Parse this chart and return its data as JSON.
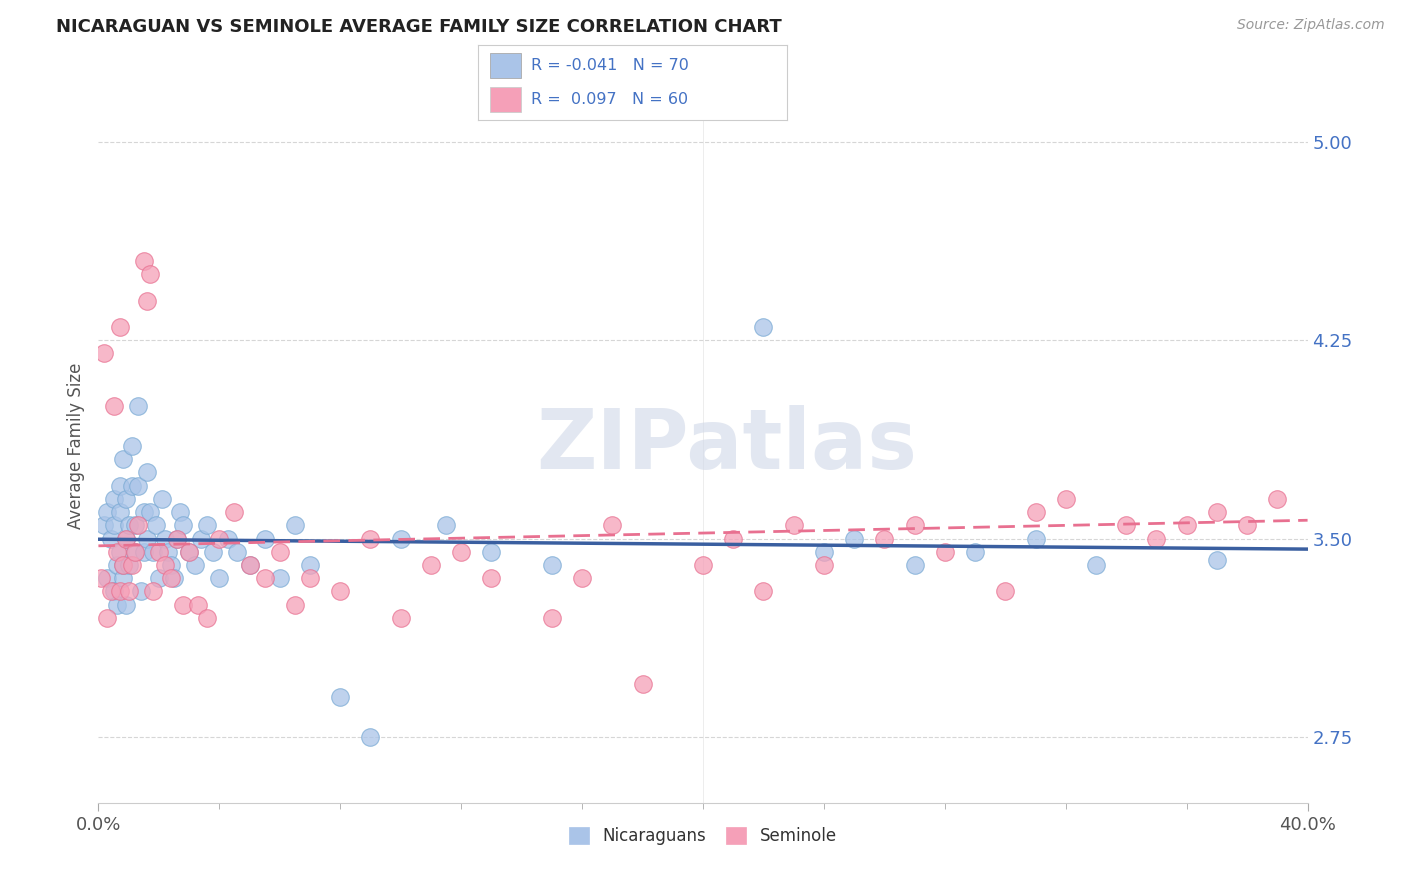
{
  "title": "NICARAGUAN VS SEMINOLE AVERAGE FAMILY SIZE CORRELATION CHART",
  "source": "Source: ZipAtlas.com",
  "ylabel": "Average Family Size",
  "xlim": [
    0.0,
    0.4
  ],
  "ylim": [
    2.5,
    5.2
  ],
  "yticks": [
    2.75,
    3.5,
    4.25,
    5.0
  ],
  "xticks": [
    0.0,
    0.4
  ],
  "xtick_labels": [
    "0.0%",
    "40.0%"
  ],
  "ytick_labels": [
    "2.75",
    "3.50",
    "4.25",
    "5.00"
  ],
  "nicaraguan_color": "#aac4e8",
  "seminole_color": "#f5a0b8",
  "nicaraguan_edge_color": "#7aaad4",
  "seminole_edge_color": "#e87090",
  "nicaraguan_line_color": "#3a5fa0",
  "seminole_line_color": "#e87090",
  "seminole_line_dash": true,
  "nicaraguan_R": -0.041,
  "nicaraguan_N": 70,
  "seminole_R": 0.097,
  "seminole_N": 60,
  "legend_text_color": "#4472c4",
  "watermark": "ZIPatlas",
  "watermark_color": "#d0d8e8",
  "background_color": "#ffffff",
  "grid_color": "#cccccc",
  "title_color": "#222222",
  "source_color": "#999999",
  "ytick_color": "#4472c4",
  "xtick_color": "#555555",
  "ylabel_color": "#555555",
  "nicaraguan_x": [
    0.002,
    0.003,
    0.003,
    0.004,
    0.005,
    0.005,
    0.005,
    0.006,
    0.006,
    0.007,
    0.007,
    0.007,
    0.008,
    0.008,
    0.008,
    0.009,
    0.009,
    0.009,
    0.01,
    0.01,
    0.011,
    0.011,
    0.012,
    0.012,
    0.013,
    0.013,
    0.014,
    0.015,
    0.015,
    0.016,
    0.016,
    0.017,
    0.018,
    0.019,
    0.02,
    0.021,
    0.022,
    0.023,
    0.024,
    0.025,
    0.026,
    0.027,
    0.028,
    0.03,
    0.032,
    0.034,
    0.036,
    0.038,
    0.04,
    0.043,
    0.046,
    0.05,
    0.055,
    0.06,
    0.065,
    0.07,
    0.08,
    0.09,
    0.1,
    0.115,
    0.13,
    0.15,
    0.22,
    0.24,
    0.25,
    0.27,
    0.29,
    0.31,
    0.33,
    0.37
  ],
  "nicaraguan_y": [
    3.55,
    3.6,
    3.35,
    3.5,
    3.65,
    3.3,
    3.55,
    3.4,
    3.25,
    3.7,
    3.45,
    3.6,
    3.35,
    3.8,
    3.4,
    3.5,
    3.65,
    3.25,
    3.55,
    3.4,
    3.7,
    3.85,
    3.55,
    3.45,
    4.0,
    3.7,
    3.3,
    3.6,
    3.45,
    3.75,
    3.5,
    3.6,
    3.45,
    3.55,
    3.35,
    3.65,
    3.5,
    3.45,
    3.4,
    3.35,
    3.5,
    3.6,
    3.55,
    3.45,
    3.4,
    3.5,
    3.55,
    3.45,
    3.35,
    3.5,
    3.45,
    3.4,
    3.5,
    3.35,
    3.55,
    3.4,
    2.9,
    2.75,
    3.5,
    3.55,
    3.45,
    3.4,
    4.3,
    3.45,
    3.5,
    3.4,
    3.45,
    3.5,
    3.4,
    3.42
  ],
  "seminole_x": [
    0.001,
    0.002,
    0.003,
    0.004,
    0.005,
    0.006,
    0.007,
    0.007,
    0.008,
    0.009,
    0.01,
    0.011,
    0.012,
    0.013,
    0.015,
    0.016,
    0.017,
    0.018,
    0.02,
    0.022,
    0.024,
    0.026,
    0.028,
    0.03,
    0.033,
    0.036,
    0.04,
    0.045,
    0.05,
    0.055,
    0.06,
    0.065,
    0.07,
    0.08,
    0.09,
    0.1,
    0.11,
    0.12,
    0.13,
    0.15,
    0.16,
    0.17,
    0.18,
    0.2,
    0.21,
    0.22,
    0.23,
    0.24,
    0.26,
    0.27,
    0.28,
    0.3,
    0.31,
    0.32,
    0.34,
    0.35,
    0.36,
    0.37,
    0.38,
    0.39
  ],
  "seminole_y": [
    3.35,
    4.2,
    3.2,
    3.3,
    4.0,
    3.45,
    3.3,
    4.3,
    3.4,
    3.5,
    3.3,
    3.4,
    3.45,
    3.55,
    4.55,
    4.4,
    4.5,
    3.3,
    3.45,
    3.4,
    3.35,
    3.5,
    3.25,
    3.45,
    3.25,
    3.2,
    3.5,
    3.6,
    3.4,
    3.35,
    3.45,
    3.25,
    3.35,
    3.3,
    3.5,
    3.2,
    3.4,
    3.45,
    3.35,
    3.2,
    3.35,
    3.55,
    2.95,
    3.4,
    3.5,
    3.3,
    3.55,
    3.4,
    3.5,
    3.55,
    3.45,
    3.3,
    3.6,
    3.65,
    3.55,
    3.5,
    3.55,
    3.6,
    3.55,
    3.65
  ]
}
